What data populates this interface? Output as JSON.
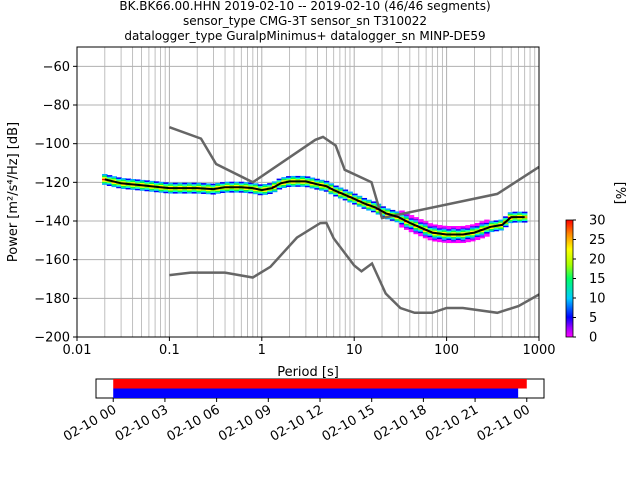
{
  "title": {
    "line1": "BK.BK66.00.HHN   2019-02-10 -- 2019-02-10  (46/46 segments)",
    "line2": "sensor_type CMG-3T sensor_sn T310022",
    "line3": "datalogger_type GuralpMinimus+ datalogger_sn MINP-DE59"
  },
  "chart_data": [
    {
      "type": "line",
      "name": "ppsd",
      "xlabel": "Period [s]",
      "ylabel": "Power [m²/s⁴/Hz] [dB]",
      "xscale": "log",
      "xlim": [
        0.01,
        1000
      ],
      "ylim": [
        -200,
        -50
      ],
      "xticks": [
        0.01,
        0.1,
        1,
        10,
        100,
        1000
      ],
      "xtick_labels": [
        "0.01",
        "0.1",
        "1",
        "10",
        "100",
        "1000"
      ],
      "yticks": [
        -200,
        -180,
        -160,
        -140,
        -120,
        -100,
        -80,
        -60
      ],
      "ytick_labels": [
        "−200",
        "−180",
        "−160",
        "−140",
        "−120",
        "−100",
        "−80",
        "−60"
      ],
      "grid": true,
      "high_noise_model": [
        [
          0.1,
          -91.5
        ],
        [
          0.22,
          -97.4
        ],
        [
          0.32,
          -110.5
        ],
        [
          0.8,
          -120
        ],
        [
          3.8,
          -98
        ],
        [
          4.6,
          -96.5
        ],
        [
          6.3,
          -101
        ],
        [
          7.9,
          -113.5
        ],
        [
          15.4,
          -120
        ],
        [
          20,
          -138.5
        ],
        [
          354,
          -126
        ],
        [
          1000,
          -112
        ]
      ],
      "low_noise_model": [
        [
          0.1,
          -168
        ],
        [
          0.17,
          -166.7
        ],
        [
          0.4,
          -166.7
        ],
        [
          0.8,
          -169.2
        ],
        [
          1.24,
          -163.7
        ],
        [
          2.4,
          -148.6
        ],
        [
          4.3,
          -141.1
        ],
        [
          5,
          -141
        ],
        [
          6,
          -149
        ],
        [
          10,
          -163
        ],
        [
          12,
          -166
        ],
        [
          15.6,
          -162
        ],
        [
          21.9,
          -177.5
        ],
        [
          31.6,
          -185
        ],
        [
          45,
          -187.5
        ],
        [
          70,
          -187.5
        ],
        [
          100,
          -185
        ],
        [
          150,
          -185
        ],
        [
          354,
          -187.5
        ],
        [
          600,
          -184
        ],
        [
          1000,
          -178
        ]
      ],
      "mean_curve": [
        [
          0.02,
          -118.5
        ],
        [
          0.03,
          -120.5
        ],
        [
          0.05,
          -121.5
        ],
        [
          0.08,
          -122.5
        ],
        [
          0.1,
          -123
        ],
        [
          0.2,
          -123
        ],
        [
          0.3,
          -123.5
        ],
        [
          0.4,
          -122.5
        ],
        [
          0.6,
          -122.5
        ],
        [
          0.8,
          -123
        ],
        [
          1,
          -124
        ],
        [
          1.3,
          -123
        ],
        [
          1.6,
          -120.5
        ],
        [
          2,
          -119.5
        ],
        [
          3,
          -119.5
        ],
        [
          4,
          -121
        ],
        [
          5,
          -122
        ],
        [
          6,
          -124
        ],
        [
          8,
          -126.5
        ],
        [
          10,
          -128.5
        ],
        [
          13,
          -131
        ],
        [
          17,
          -133
        ],
        [
          22,
          -136
        ],
        [
          30,
          -138
        ],
        [
          40,
          -141
        ],
        [
          50,
          -143
        ],
        [
          70,
          -146
        ],
        [
          100,
          -147
        ],
        [
          150,
          -147
        ],
        [
          200,
          -146
        ],
        [
          300,
          -143
        ],
        [
          400,
          -142
        ],
        [
          500,
          -138
        ],
        [
          700,
          -138
        ]
      ],
      "colorbar": {
        "label": "[%]",
        "min": 0,
        "max": 30,
        "ticks": [
          0,
          5,
          10,
          15,
          20,
          25,
          30
        ],
        "tick_labels": [
          "0",
          "5",
          "10",
          "15",
          "20",
          "25",
          "30"
        ]
      }
    },
    {
      "type": "timeline",
      "name": "data-coverage",
      "xlim": [
        "2019-02-09 23:00",
        "2019-02-11 01:00"
      ],
      "xtick_labels": [
        "02-10 00",
        "02-10 03",
        "02-10 06",
        "02-10 09",
        "02-10 12",
        "02-10 15",
        "02-10 18",
        "02-10 21",
        "02-11 00"
      ],
      "series": [
        {
          "color": "#ff0000",
          "start": "2019-02-10 00:00",
          "end": "2019-02-11 00:00"
        },
        {
          "color": "#0000ff",
          "start": "2019-02-10 00:00",
          "end": "2019-02-10 23:30"
        }
      ]
    }
  ]
}
